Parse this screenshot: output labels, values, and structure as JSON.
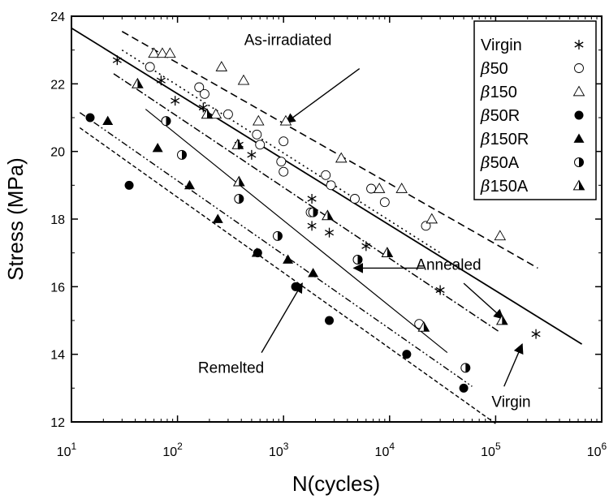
{
  "chart_data": {
    "type": "scatter",
    "xscale": "log",
    "xlim": [
      10,
      1000000
    ],
    "ylim": [
      12,
      24
    ],
    "xlabel": "N(cycles)",
    "ylabel": "Stress (MPa)",
    "xticks": [
      {
        "value": 10,
        "base": "10",
        "exp": "1"
      },
      {
        "value": 100,
        "base": "10",
        "exp": "2"
      },
      {
        "value": 1000,
        "base": "10",
        "exp": "3"
      },
      {
        "value": 10000,
        "base": "10",
        "exp": "4"
      },
      {
        "value": 100000,
        "base": "10",
        "exp": "5"
      },
      {
        "value": 1000000,
        "base": "10",
        "exp": "6"
      }
    ],
    "yticks": [
      {
        "value": 12,
        "label": "12"
      },
      {
        "value": 14,
        "label": "14"
      },
      {
        "value": 16,
        "label": "16"
      },
      {
        "value": 18,
        "label": "18"
      },
      {
        "value": 20,
        "label": "20"
      },
      {
        "value": 22,
        "label": "22"
      },
      {
        "value": 24,
        "label": "24"
      }
    ],
    "legend_position": "top-right",
    "series": [
      {
        "name": "Virgin",
        "prefix": "",
        "suffix": "Virgin",
        "marker": "asterisk",
        "points": [
          [
            27,
            22.7
          ],
          [
            70,
            22.1
          ],
          [
            95,
            21.5
          ],
          [
            175,
            21.3
          ],
          [
            380,
            20.2
          ],
          [
            500,
            19.9
          ],
          [
            1850,
            18.6
          ],
          [
            1850,
            17.8
          ],
          [
            2700,
            17.6
          ],
          [
            6000,
            17.2
          ],
          [
            30000,
            15.9
          ],
          [
            240000,
            14.6
          ]
        ]
      },
      {
        "name": "β50",
        "prefix": "β",
        "suffix": "50",
        "marker": "circle-open",
        "points": [
          [
            55,
            22.5
          ],
          [
            160,
            21.9
          ],
          [
            180,
            21.7
          ],
          [
            300,
            21.1
          ],
          [
            560,
            20.5
          ],
          [
            600,
            20.2
          ],
          [
            1000,
            20.3
          ],
          [
            950,
            19.7
          ],
          [
            1000,
            19.4
          ],
          [
            2500,
            19.3
          ],
          [
            2800,
            19
          ],
          [
            4700,
            18.6
          ],
          [
            6700,
            18.9
          ],
          [
            9000,
            18.5
          ],
          [
            1800,
            18.2
          ],
          [
            22000,
            17.8
          ],
          [
            19000,
            14.9
          ]
        ]
      },
      {
        "name": "β150",
        "prefix": "β",
        "suffix": "150",
        "marker": "triangle-open",
        "points": [
          [
            60,
            22.9
          ],
          [
            72,
            22.9
          ],
          [
            85,
            22.9
          ],
          [
            260,
            22.5
          ],
          [
            420,
            22.1
          ],
          [
            230,
            21.1
          ],
          [
            580,
            20.9
          ],
          [
            1050,
            20.9
          ],
          [
            3500,
            19.8
          ],
          [
            8000,
            18.9
          ],
          [
            13000,
            18.9
          ],
          [
            25000,
            18
          ],
          [
            110000,
            17.5
          ]
        ]
      },
      {
        "name": "β50R",
        "prefix": "β",
        "suffix": "50R",
        "marker": "circle-filled",
        "points": [
          [
            15,
            21
          ],
          [
            35,
            19
          ],
          [
            570,
            17
          ],
          [
            1300,
            16
          ],
          [
            2700,
            15
          ],
          [
            14500,
            14
          ],
          [
            50000,
            13
          ]
        ]
      },
      {
        "name": "β150R",
        "prefix": "β",
        "suffix": "150R",
        "marker": "triangle-filled",
        "points": [
          [
            22,
            20.9
          ],
          [
            65,
            20.1
          ],
          [
            130,
            19
          ],
          [
            240,
            18
          ],
          [
            560,
            17
          ],
          [
            1100,
            16.8
          ],
          [
            1900,
            16.4
          ]
        ]
      },
      {
        "name": "β50A",
        "prefix": "β",
        "suffix": "50A",
        "marker": "circle-half",
        "points": [
          [
            78,
            20.9
          ],
          [
            110,
            19.9
          ],
          [
            380,
            18.6
          ],
          [
            880,
            17.5
          ],
          [
            1900,
            18.2
          ],
          [
            5000,
            16.8
          ],
          [
            52000,
            13.6
          ]
        ]
      },
      {
        "name": "β150A",
        "prefix": "β",
        "suffix": "150A",
        "marker": "triangle-half",
        "points": [
          [
            42,
            22
          ],
          [
            190,
            21.1
          ],
          [
            370,
            20.2
          ],
          [
            380,
            19.1
          ],
          [
            2600,
            18.1
          ],
          [
            9500,
            17
          ],
          [
            21000,
            14.8
          ],
          [
            115000,
            15
          ]
        ]
      }
    ],
    "fit_lines": [
      {
        "name": "as-irradiated-fit",
        "style": "dashed",
        "x": [
          30,
          250000
        ],
        "y": [
          23.55,
          16.55
        ]
      },
      {
        "name": "beta50-fit",
        "style": "dotted",
        "x": [
          30,
          30000
        ],
        "y": [
          23.0,
          17.0
        ]
      },
      {
        "name": "virgin-fit",
        "style": "solid",
        "x": [
          10,
          650000
        ],
        "y": [
          23.65,
          14.3
        ]
      },
      {
        "name": "annealed-fit",
        "style": "dashdot",
        "x": [
          25,
          110000
        ],
        "y": [
          22.3,
          14.65
        ]
      },
      {
        "name": "remelted-annealed-fit",
        "style": "solid-thin",
        "x": [
          50,
          35000
        ],
        "y": [
          21.25,
          14.05
        ]
      },
      {
        "name": "remelted-upper-fit",
        "style": "dashdotdot",
        "x": [
          12,
          60000
        ],
        "y": [
          21.15,
          13.05
        ]
      },
      {
        "name": "remelted-lower-fit",
        "style": "dashed-fine",
        "x": [
          12,
          100000
        ],
        "y": [
          20.7,
          11.95
        ]
      }
    ],
    "annotations": [
      {
        "text": "As-irradiated",
        "label_x": 1100,
        "label_y": 23.15,
        "tail_x": 5200,
        "tail_y": 22.45,
        "head_x": 1050,
        "head_y": 20.85
      },
      {
        "text": "Annealed",
        "label_x": 36000,
        "label_y": 16.5,
        "tail_x": 21000,
        "tail_y": 16.55,
        "head_x": 4600,
        "head_y": 16.55
      },
      {
        "text": "Annealed",
        "label_x": 36000,
        "label_y": 16.5,
        "tail_x": 50000,
        "tail_y": 16.1,
        "head_x": 118000,
        "head_y": 15.05
      },
      {
        "text": "Remelted",
        "label_x": 320,
        "label_y": 13.45,
        "tail_x": 620,
        "tail_y": 14.05,
        "head_x": 1500,
        "head_y": 16.1
      },
      {
        "text": "Virgin",
        "label_x": 140000,
        "label_y": 12.45,
        "tail_x": 120000,
        "tail_y": 13.05,
        "head_x": 178000,
        "head_y": 14.3
      }
    ]
  }
}
